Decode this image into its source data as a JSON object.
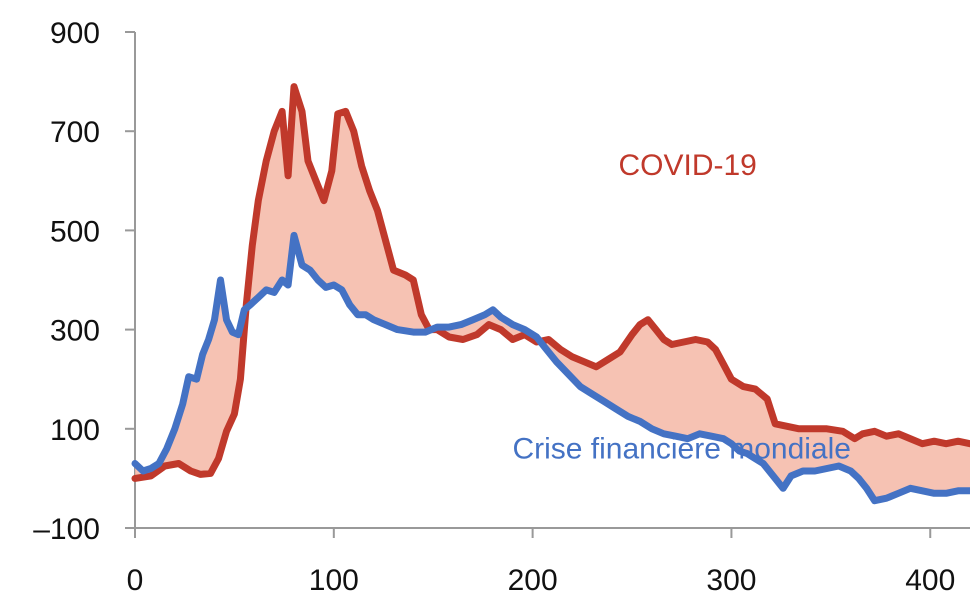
{
  "chart_data": {
    "type": "line",
    "title": "",
    "xlabel": "",
    "ylabel": "",
    "xlim": [
      0,
      420
    ],
    "ylim": [
      -100,
      900
    ],
    "x_ticks": [
      0,
      100,
      200,
      300,
      400
    ],
    "y_ticks": [
      900,
      700,
      500,
      300,
      100,
      -100
    ],
    "x_tick_labels": [
      "0",
      "100",
      "200",
      "300",
      "400"
    ],
    "y_tick_labels": [
      "900",
      "700",
      "500",
      "300",
      "100",
      "–100"
    ],
    "shade_between_series": true,
    "fill_color": "#f4b7a6",
    "series": [
      {
        "name": "COVID-19",
        "color": "#c0392b",
        "points": [
          [
            0,
            0
          ],
          [
            8,
            5
          ],
          [
            15,
            25
          ],
          [
            22,
            30
          ],
          [
            28,
            15
          ],
          [
            33,
            8
          ],
          [
            38,
            10
          ],
          [
            42,
            40
          ],
          [
            46,
            95
          ],
          [
            50,
            130
          ],
          [
            53,
            200
          ],
          [
            56,
            350
          ],
          [
            59,
            470
          ],
          [
            62,
            560
          ],
          [
            66,
            640
          ],
          [
            70,
            700
          ],
          [
            74,
            740
          ],
          [
            77,
            610
          ],
          [
            80,
            790
          ],
          [
            84,
            740
          ],
          [
            87,
            640
          ],
          [
            91,
            600
          ],
          [
            95,
            560
          ],
          [
            99,
            620
          ],
          [
            102,
            735
          ],
          [
            106,
            740
          ],
          [
            110,
            700
          ],
          [
            114,
            630
          ],
          [
            118,
            580
          ],
          [
            122,
            540
          ],
          [
            126,
            480
          ],
          [
            130,
            420
          ],
          [
            136,
            410
          ],
          [
            140,
            400
          ],
          [
            144,
            330
          ],
          [
            148,
            300
          ],
          [
            152,
            300
          ],
          [
            158,
            285
          ],
          [
            165,
            280
          ],
          [
            172,
            290
          ],
          [
            178,
            310
          ],
          [
            184,
            300
          ],
          [
            190,
            280
          ],
          [
            196,
            290
          ],
          [
            202,
            275
          ],
          [
            208,
            280
          ],
          [
            214,
            260
          ],
          [
            220,
            245
          ],
          [
            226,
            235
          ],
          [
            232,
            225
          ],
          [
            238,
            240
          ],
          [
            244,
            255
          ],
          [
            250,
            290
          ],
          [
            254,
            310
          ],
          [
            258,
            320
          ],
          [
            262,
            300
          ],
          [
            266,
            280
          ],
          [
            270,
            270
          ],
          [
            276,
            275
          ],
          [
            282,
            280
          ],
          [
            288,
            275
          ],
          [
            292,
            260
          ],
          [
            296,
            230
          ],
          [
            300,
            200
          ],
          [
            306,
            185
          ],
          [
            312,
            180
          ],
          [
            318,
            160
          ],
          [
            322,
            110
          ],
          [
            328,
            105
          ],
          [
            334,
            100
          ],
          [
            340,
            100
          ],
          [
            348,
            100
          ],
          [
            356,
            95
          ],
          [
            362,
            80
          ],
          [
            366,
            90
          ],
          [
            372,
            95
          ],
          [
            378,
            85
          ],
          [
            384,
            90
          ],
          [
            390,
            80
          ],
          [
            396,
            70
          ],
          [
            402,
            75
          ],
          [
            408,
            70
          ],
          [
            414,
            75
          ],
          [
            420,
            70
          ]
        ]
      },
      {
        "name": "Crise financière mondiale",
        "color": "#4472c4",
        "points": [
          [
            0,
            30
          ],
          [
            4,
            15
          ],
          [
            8,
            20
          ],
          [
            12,
            30
          ],
          [
            16,
            60
          ],
          [
            20,
            100
          ],
          [
            24,
            150
          ],
          [
            27,
            205
          ],
          [
            31,
            200
          ],
          [
            34,
            250
          ],
          [
            37,
            280
          ],
          [
            40,
            320
          ],
          [
            43,
            400
          ],
          [
            46,
            320
          ],
          [
            49,
            295
          ],
          [
            52,
            290
          ],
          [
            55,
            340
          ],
          [
            58,
            350
          ],
          [
            62,
            365
          ],
          [
            66,
            380
          ],
          [
            70,
            375
          ],
          [
            74,
            400
          ],
          [
            77,
            390
          ],
          [
            80,
            490
          ],
          [
            84,
            430
          ],
          [
            88,
            420
          ],
          [
            92,
            400
          ],
          [
            96,
            385
          ],
          [
            100,
            390
          ],
          [
            104,
            380
          ],
          [
            108,
            350
          ],
          [
            112,
            330
          ],
          [
            116,
            330
          ],
          [
            120,
            320
          ],
          [
            126,
            310
          ],
          [
            132,
            300
          ],
          [
            140,
            295
          ],
          [
            146,
            295
          ],
          [
            152,
            305
          ],
          [
            158,
            305
          ],
          [
            164,
            310
          ],
          [
            170,
            320
          ],
          [
            176,
            330
          ],
          [
            180,
            340
          ],
          [
            184,
            325
          ],
          [
            190,
            310
          ],
          [
            196,
            300
          ],
          [
            202,
            285
          ],
          [
            206,
            265
          ],
          [
            212,
            235
          ],
          [
            218,
            210
          ],
          [
            224,
            185
          ],
          [
            230,
            170
          ],
          [
            236,
            155
          ],
          [
            242,
            140
          ],
          [
            248,
            125
          ],
          [
            254,
            115
          ],
          [
            260,
            100
          ],
          [
            266,
            90
          ],
          [
            272,
            85
          ],
          [
            278,
            80
          ],
          [
            284,
            90
          ],
          [
            290,
            85
          ],
          [
            296,
            80
          ],
          [
            300,
            70
          ],
          [
            304,
            55
          ],
          [
            308,
            50
          ],
          [
            312,
            40
          ],
          [
            316,
            30
          ],
          [
            322,
            0
          ],
          [
            326,
            -20
          ],
          [
            330,
            5
          ],
          [
            336,
            15
          ],
          [
            342,
            15
          ],
          [
            348,
            20
          ],
          [
            354,
            25
          ],
          [
            360,
            15
          ],
          [
            364,
            0
          ],
          [
            368,
            -20
          ],
          [
            372,
            -45
          ],
          [
            378,
            -40
          ],
          [
            384,
            -30
          ],
          [
            390,
            -20
          ],
          [
            396,
            -25
          ],
          [
            402,
            -30
          ],
          [
            408,
            -30
          ],
          [
            414,
            -25
          ],
          [
            420,
            -25
          ]
        ]
      }
    ],
    "annotations": [
      {
        "text": "COVID-19",
        "color": "#c0392b",
        "x": 278,
        "y": 612
      },
      {
        "text": "Crise financière mondiale",
        "color": "#4472c4",
        "x": 275,
        "y": 40
      }
    ]
  }
}
